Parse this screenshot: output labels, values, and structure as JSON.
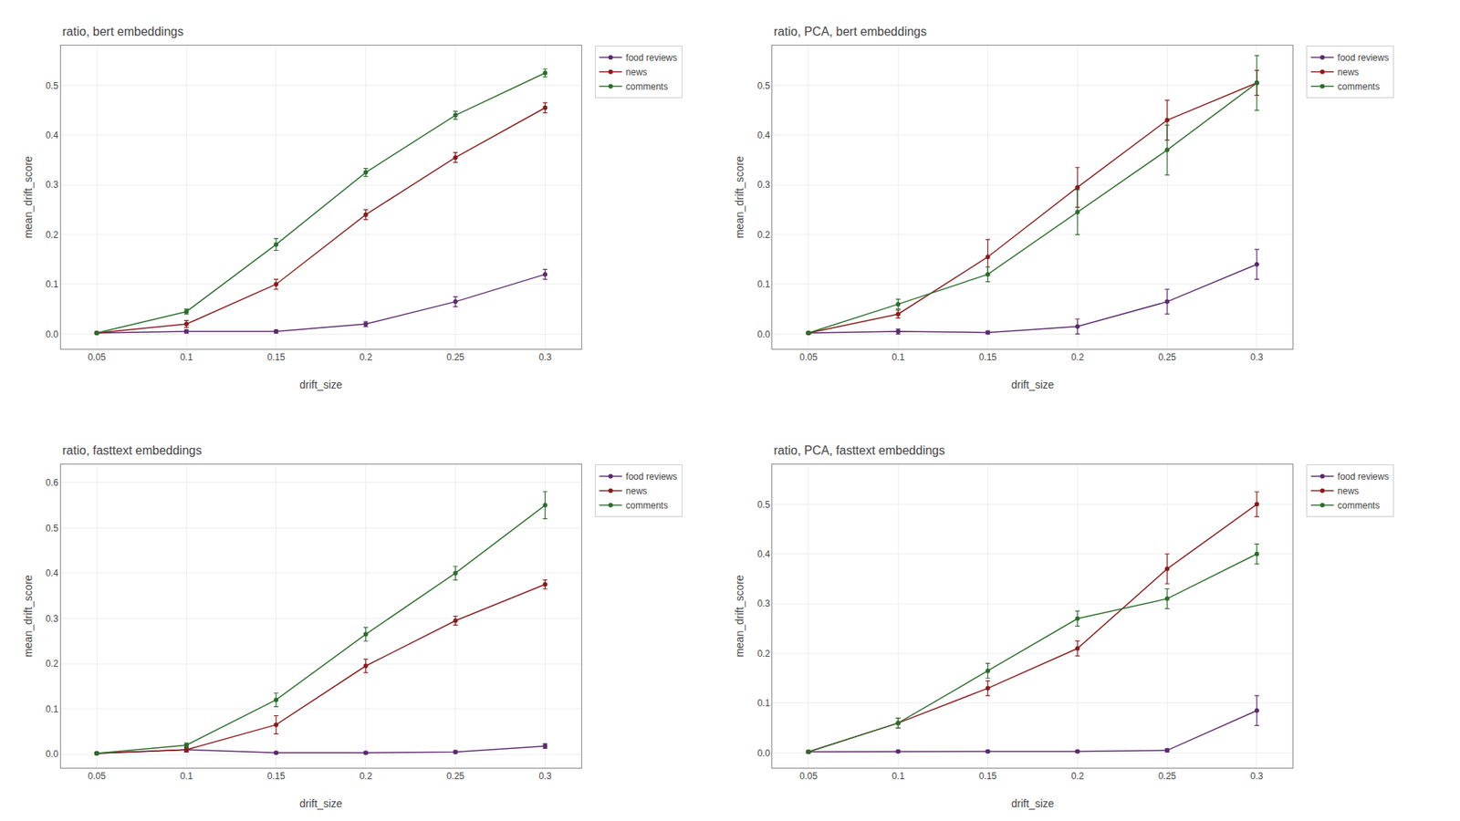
{
  "chart_data": [
    {
      "type": "line",
      "title": "ratio, bert embeddings",
      "xlabel": "drift_size",
      "ylabel": "mean_drift_score",
      "x": [
        0.05,
        0.1,
        0.15,
        0.2,
        0.25,
        0.3
      ],
      "xlim": [
        0.03,
        0.32
      ],
      "xticks": [
        0.05,
        0.1,
        0.15,
        0.2,
        0.25,
        0.3
      ],
      "ylim": [
        -0.03,
        0.58
      ],
      "yticks": [
        {
          "value": 0.0,
          "label": "0.0"
        },
        0.1,
        0.2,
        0.3,
        0.4,
        0.5
      ],
      "grid": true,
      "legend": "right",
      "series": [
        {
          "name": "food reviews",
          "color": "#5c2a6e",
          "marker": "circle",
          "values": [
            0.002,
            0.005,
            0.005,
            0.02,
            0.065,
            0.12
          ],
          "errors": [
            0.002,
            0.003,
            0.003,
            0.005,
            0.01,
            0.01
          ]
        },
        {
          "name": "news",
          "color": "#8b1a1a",
          "marker": "circle",
          "values": [
            0.002,
            0.02,
            0.1,
            0.24,
            0.355,
            0.455
          ],
          "errors": [
            0.002,
            0.007,
            0.01,
            0.01,
            0.01,
            0.01
          ]
        },
        {
          "name": "comments",
          "color": "#2a6e2a",
          "marker": "circle",
          "values": [
            0.002,
            0.045,
            0.18,
            0.325,
            0.44,
            0.525
          ],
          "errors": [
            0.002,
            0.005,
            0.012,
            0.008,
            0.008,
            0.008
          ]
        }
      ]
    },
    {
      "type": "line",
      "title": "ratio, PCA, bert embeddings",
      "xlabel": "drift_size",
      "ylabel": "mean_drift_score",
      "x": [
        0.05,
        0.1,
        0.15,
        0.2,
        0.25,
        0.3
      ],
      "xlim": [
        0.03,
        0.32
      ],
      "xticks": [
        0.05,
        0.1,
        0.15,
        0.2,
        0.25,
        0.3
      ],
      "ylim": [
        -0.03,
        0.58
      ],
      "yticks": [
        {
          "value": 0.0,
          "label": "0.0"
        },
        0.1,
        0.2,
        0.3,
        0.4,
        0.5
      ],
      "grid": true,
      "legend": "right",
      "series": [
        {
          "name": "food reviews",
          "color": "#5c2a6e",
          "marker": "circle",
          "values": [
            0.002,
            0.005,
            0.003,
            0.015,
            0.065,
            0.14
          ],
          "errors": [
            0.002,
            0.005,
            0.003,
            0.015,
            0.025,
            0.03
          ]
        },
        {
          "name": "news",
          "color": "#8b1a1a",
          "marker": "circle",
          "values": [
            0.002,
            0.04,
            0.155,
            0.295,
            0.43,
            0.505
          ],
          "errors": [
            0.002,
            0.008,
            0.035,
            0.04,
            0.04,
            0.025
          ]
        },
        {
          "name": "comments",
          "color": "#2a6e2a",
          "marker": "circle",
          "values": [
            0.002,
            0.06,
            0.12,
            0.245,
            0.37,
            0.505
          ],
          "errors": [
            0.002,
            0.01,
            0.015,
            0.045,
            0.05,
            0.055
          ]
        }
      ]
    },
    {
      "type": "line",
      "title": "ratio, fasttext embeddings",
      "xlabel": "drift_size",
      "ylabel": "mean_drift_score",
      "x": [
        0.05,
        0.1,
        0.15,
        0.2,
        0.25,
        0.3
      ],
      "xlim": [
        0.03,
        0.32
      ],
      "xticks": [
        0.05,
        0.1,
        0.15,
        0.2,
        0.25,
        0.3
      ],
      "ylim": [
        -0.03,
        0.64
      ],
      "yticks": [
        {
          "value": 0.0,
          "label": "0.0"
        },
        0.1,
        0.2,
        0.3,
        0.4,
        0.5,
        0.6
      ],
      "grid": true,
      "legend": "right",
      "series": [
        {
          "name": "food reviews",
          "color": "#5c2a6e",
          "marker": "circle",
          "values": [
            0.002,
            0.01,
            0.003,
            0.003,
            0.005,
            0.018
          ],
          "errors": [
            0.002,
            0.005,
            0.002,
            0.002,
            0.003,
            0.005
          ]
        },
        {
          "name": "news",
          "color": "#8b1a1a",
          "marker": "circle",
          "values": [
            0.002,
            0.01,
            0.065,
            0.195,
            0.295,
            0.375
          ],
          "errors": [
            0.002,
            0.005,
            0.02,
            0.015,
            0.01,
            0.01
          ]
        },
        {
          "name": "comments",
          "color": "#2a6e2a",
          "marker": "circle",
          "values": [
            0.002,
            0.02,
            0.12,
            0.265,
            0.4,
            0.55
          ],
          "errors": [
            0.002,
            0.005,
            0.015,
            0.015,
            0.015,
            0.03
          ]
        }
      ]
    },
    {
      "type": "line",
      "title": "ratio, PCA, fasttext embeddings",
      "xlabel": "drift_size",
      "ylabel": "mean_drift_score",
      "x": [
        0.05,
        0.1,
        0.15,
        0.2,
        0.25,
        0.3
      ],
      "xlim": [
        0.03,
        0.32
      ],
      "xticks": [
        0.05,
        0.1,
        0.15,
        0.2,
        0.25,
        0.3
      ],
      "ylim": [
        -0.03,
        0.58
      ],
      "yticks": [
        {
          "value": 0.0,
          "label": "0.0"
        },
        0.1,
        0.2,
        0.3,
        0.4,
        0.5
      ],
      "grid": true,
      "legend": "right",
      "series": [
        {
          "name": "food reviews",
          "color": "#5c2a6e",
          "marker": "circle",
          "values": [
            0.002,
            0.003,
            0.003,
            0.003,
            0.005,
            0.085
          ],
          "errors": [
            0.002,
            0.002,
            0.002,
            0.002,
            0.003,
            0.03
          ]
        },
        {
          "name": "news",
          "color": "#8b1a1a",
          "marker": "circle",
          "values": [
            0.002,
            0.06,
            0.13,
            0.21,
            0.37,
            0.5
          ],
          "errors": [
            0.002,
            0.01,
            0.015,
            0.015,
            0.03,
            0.025
          ]
        },
        {
          "name": "comments",
          "color": "#2a6e2a",
          "marker": "circle",
          "values": [
            0.002,
            0.06,
            0.165,
            0.27,
            0.31,
            0.4
          ],
          "errors": [
            0.002,
            0.01,
            0.015,
            0.015,
            0.02,
            0.02
          ]
        }
      ]
    }
  ]
}
